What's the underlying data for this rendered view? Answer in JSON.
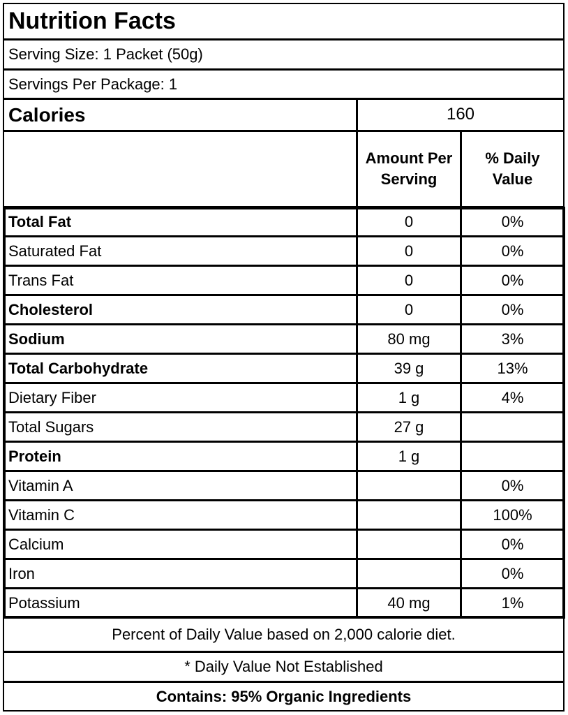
{
  "title": "Nutrition Facts",
  "serving_size": "Serving Size: 1 Packet (50g)",
  "servings_per_package": "Servings Per Package: 1",
  "calories": {
    "label": "Calories",
    "value": "160"
  },
  "header": {
    "amount": "Amount Per Serving",
    "daily": "% Daily Value"
  },
  "rows": [
    {
      "label": "Total Fat",
      "amount": "0",
      "daily": "0%",
      "bold": true
    },
    {
      "label": "Saturated Fat",
      "amount": "0",
      "daily": "0%",
      "bold": false
    },
    {
      "label": "Trans Fat",
      "amount": "0",
      "daily": "0%",
      "bold": false
    },
    {
      "label": "Cholesterol",
      "amount": "0",
      "daily": "0%",
      "bold": true
    },
    {
      "label": "Sodium",
      "amount": "80 mg",
      "daily": "3%",
      "bold": true
    },
    {
      "label": "Total Carbohydrate",
      "amount": "39 g",
      "daily": "13%",
      "bold": true
    },
    {
      "label": "Dietary Fiber",
      "amount": "1 g",
      "daily": "4%",
      "bold": false
    },
    {
      "label": "Total Sugars",
      "amount": "27 g",
      "bold": false
    },
    {
      "label": "Protein",
      "amount": "1 g",
      "bold": true
    },
    {
      "label": "Vitamin A",
      "daily": "0%",
      "bold": false
    },
    {
      "label": "Vitamin C",
      "daily": "100%",
      "bold": false
    },
    {
      "label": "Calcium",
      "daily": "0%",
      "bold": false
    },
    {
      "label": "Iron",
      "daily": "0%",
      "bold": false
    },
    {
      "label": "Potassium",
      "amount": "40 mg",
      "daily": "1%",
      "bold": false
    }
  ],
  "footnotes": [
    "Percent of Daily Value based on 2,000 calorie diet.",
    "* Daily Value Not Established",
    "Contains: 95% Organic Ingredients"
  ]
}
